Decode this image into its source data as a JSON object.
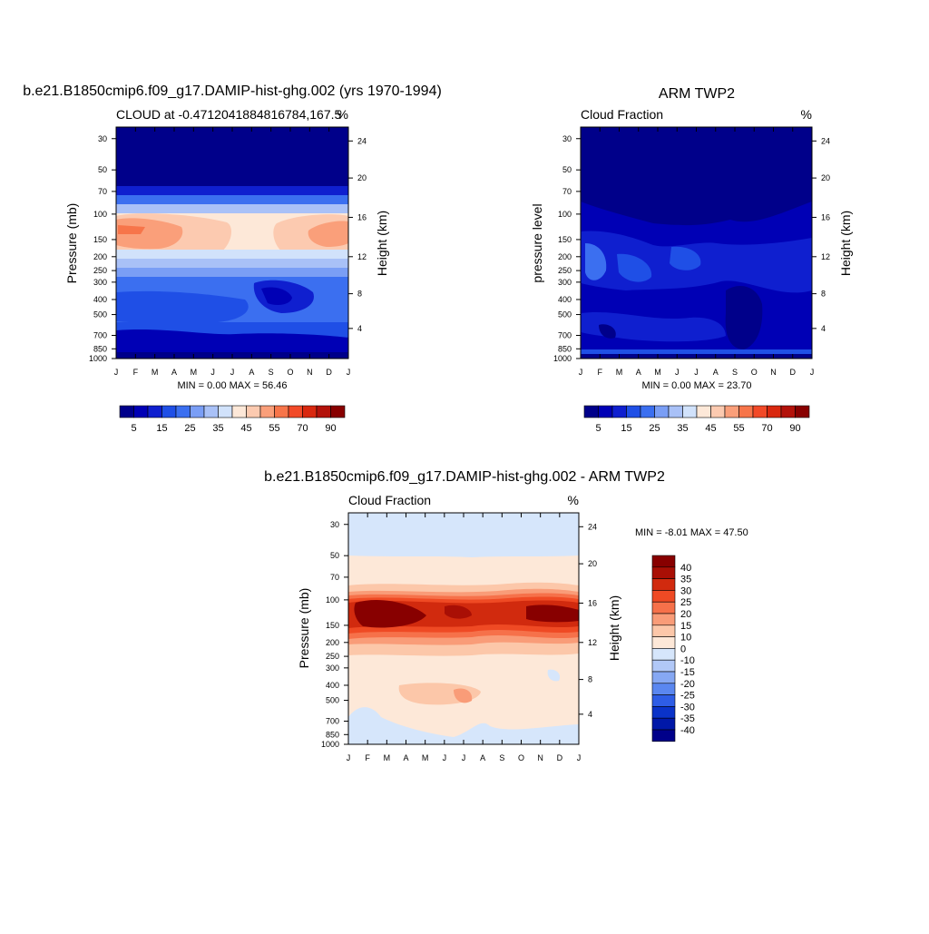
{
  "colors": {
    "seq_palette": [
      "#00008a",
      "#0000b5",
      "#0f1fcf",
      "#1f4fe6",
      "#3b6ff0",
      "#7a9ef5",
      "#a9c1f7",
      "#d1e2fb",
      "#fde8d8",
      "#fccab0",
      "#fa9f7a",
      "#f7754a",
      "#f24a28",
      "#d9280f",
      "#b3120a",
      "#880000"
    ],
    "div_palette": [
      "#00008a",
      "#0018a8",
      "#0a33c9",
      "#2e5de6",
      "#5a87f0",
      "#86a8f3",
      "#b1c8f7",
      "#d6e6fb",
      "#fde8d8",
      "#fcc7a9",
      "#f99c78",
      "#f6714a",
      "#ef4a24",
      "#d12a0e",
      "#a90f05",
      "#880000"
    ]
  },
  "chart_data": [
    {
      "type": "heatmap",
      "title": "b.e21.B1850cmip6.f09_g17.DAMIP-hist-ghg.002 (yrs 1970-1994)",
      "left_string": "CLOUD at -0.4712041884816784,167.5",
      "right_string": "%",
      "ylabel": "Pressure (mb)",
      "ylabel_right": "Height (km)",
      "x_ticks": [
        "J",
        "F",
        "M",
        "A",
        "M",
        "J",
        "J",
        "A",
        "S",
        "O",
        "N",
        "D",
        "J"
      ],
      "y_ticks": [
        "30",
        "50",
        "70",
        "100",
        "150",
        "200",
        "250",
        "300",
        "400",
        "500",
        "700",
        "850",
        "1000"
      ],
      "y_ticks_right": [
        "24",
        "20",
        "16",
        "12",
        "8",
        "4"
      ],
      "stats": "MIN =   0.00 MAX =  56.46",
      "colorbar_labels": [
        "5",
        "15",
        "25",
        "35",
        "45",
        "55",
        "70",
        "90"
      ],
      "min": 0.0,
      "max": 56.46
    },
    {
      "type": "heatmap",
      "title": "ARM TWP2",
      "left_string": "Cloud Fraction",
      "right_string": "%",
      "ylabel": "pressure level",
      "ylabel_right": "Height (km)",
      "x_ticks": [
        "J",
        "F",
        "M",
        "A",
        "M",
        "J",
        "J",
        "A",
        "S",
        "O",
        "N",
        "D",
        "J"
      ],
      "y_ticks": [
        "30",
        "50",
        "70",
        "100",
        "150",
        "200",
        "250",
        "300",
        "400",
        "500",
        "700",
        "850",
        "1000"
      ],
      "y_ticks_right": [
        "24",
        "20",
        "16",
        "12",
        "8",
        "4"
      ],
      "stats": "MIN =   0.00 MAX =  23.70",
      "colorbar_labels": [
        "5",
        "15",
        "25",
        "35",
        "45",
        "55",
        "70",
        "90"
      ],
      "min": 0.0,
      "max": 23.7
    },
    {
      "type": "heatmap",
      "title": "b.e21.B1850cmip6.f09_g17.DAMIP-hist-ghg.002 - ARM TWP2",
      "left_string": "Cloud Fraction",
      "right_string": "%",
      "ylabel": "Pressure (mb)",
      "ylabel_right": "Height (km)",
      "x_ticks": [
        "J",
        "F",
        "M",
        "A",
        "M",
        "J",
        "J",
        "A",
        "S",
        "O",
        "N",
        "D",
        "J"
      ],
      "y_ticks": [
        "30",
        "50",
        "70",
        "100",
        "150",
        "200",
        "250",
        "300",
        "400",
        "500",
        "700",
        "850",
        "1000"
      ],
      "y_ticks_right": [
        "24",
        "20",
        "16",
        "12",
        "8",
        "4"
      ],
      "stats": "MIN =  -8.01 MAX =  47.50",
      "colorbar_labels": [
        "40",
        "35",
        "30",
        "25",
        "20",
        "15",
        "10",
        "0",
        "-10",
        "-15",
        "-20",
        "-25",
        "-30",
        "-35",
        "-40"
      ],
      "min": -8.01,
      "max": 47.5
    }
  ]
}
